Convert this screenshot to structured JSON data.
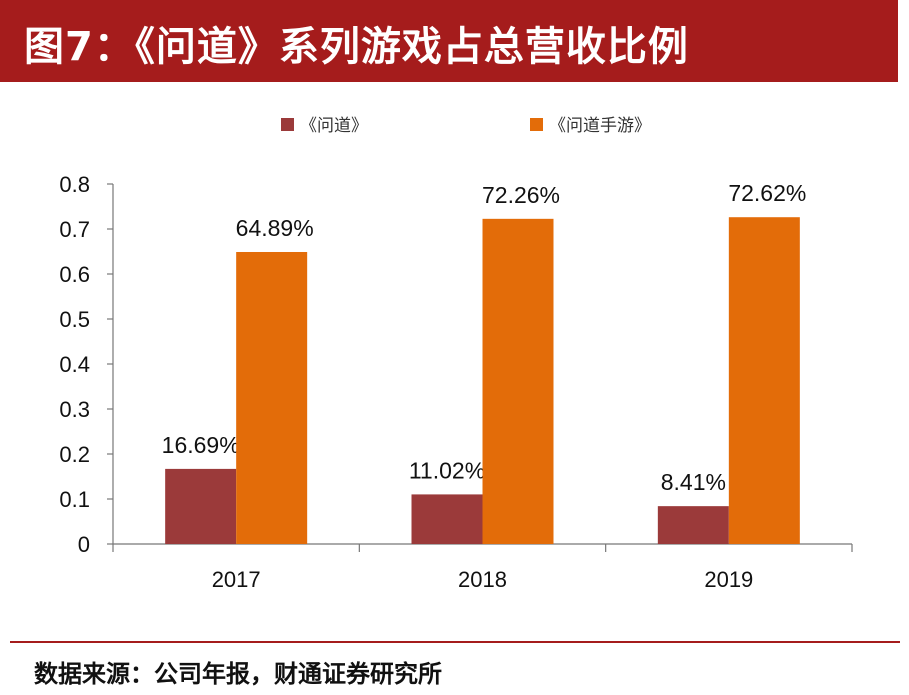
{
  "header": {
    "title": "图7：《问道》系列游戏占总营收比例"
  },
  "footer": {
    "source": "数据来源：公司年报，财通证券研究所"
  },
  "colors": {
    "title_bg": "#a51c1c",
    "series_1": "#9b3a3a",
    "series_2": "#e36c09"
  },
  "chart_data": {
    "type": "bar",
    "title": "《问道》系列游戏占总营收比例",
    "categories": [
      "2017",
      "2018",
      "2019"
    ],
    "series": [
      {
        "name": "《问道》",
        "values": [
          0.1669,
          0.1102,
          0.0841
        ],
        "labels": [
          "16.69%",
          "11.02%",
          "8.41%"
        ]
      },
      {
        "name": "《问道手游》",
        "values": [
          0.6489,
          0.7226,
          0.7262
        ],
        "labels": [
          "64.89%",
          "72.26%",
          "72.62%"
        ]
      }
    ],
    "ylim": [
      0,
      0.8
    ],
    "yticks": [
      "0",
      "0.1",
      "0.2",
      "0.3",
      "0.4",
      "0.5",
      "0.6",
      "0.7",
      "0.8"
    ],
    "xlabel": "",
    "ylabel": "",
    "legend": "top-center",
    "grid": false
  }
}
